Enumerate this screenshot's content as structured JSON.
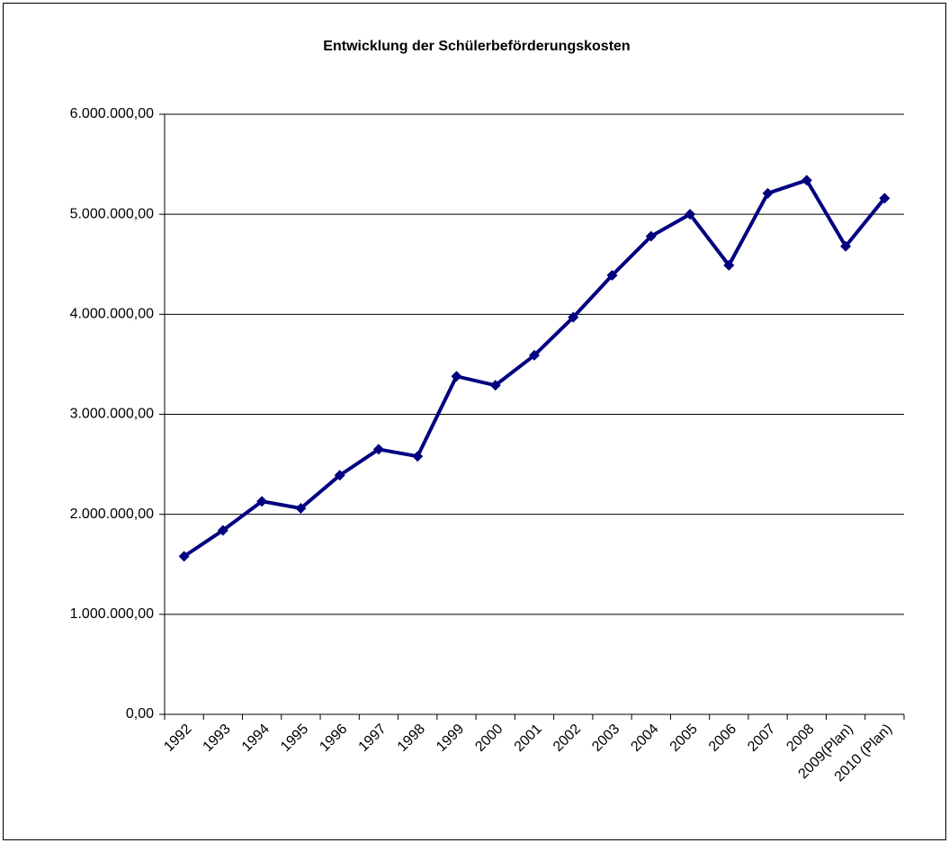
{
  "chart_data": {
    "type": "line",
    "title": "Entwicklung der Schülerbeförderungskosten",
    "categories": [
      "1992",
      "1993",
      "1994",
      "1995",
      "1996",
      "1997",
      "1998",
      "1999",
      "2000",
      "2001",
      "2002",
      "2003",
      "2004",
      "2005",
      "2006",
      "2007",
      "2008",
      "2009(Plan)",
      "2010 (Plan)"
    ],
    "series": [
      {
        "color": "#000080",
        "values": [
          1580000,
          1840000,
          2130000,
          2060000,
          2390000,
          2650000,
          2580000,
          3380000,
          3290000,
          3590000,
          3970000,
          4390000,
          4780000,
          5000000,
          4490000,
          5210000,
          5340000,
          4680000,
          5160000
        ]
      }
    ],
    "ylim": [
      0,
      6000000
    ],
    "yticks": [
      {
        "value": 0,
        "label": "0,00"
      },
      {
        "value": 1000000,
        "label": "1.000.000,00"
      },
      {
        "value": 2000000,
        "label": "2.000.000,00"
      },
      {
        "value": 3000000,
        "label": "3.000.000,00"
      },
      {
        "value": 4000000,
        "label": "4.000.000,00"
      },
      {
        "value": 5000000,
        "label": "5.000.000,00"
      },
      {
        "value": 6000000,
        "label": "6.000.000,00"
      }
    ],
    "grid": true
  }
}
